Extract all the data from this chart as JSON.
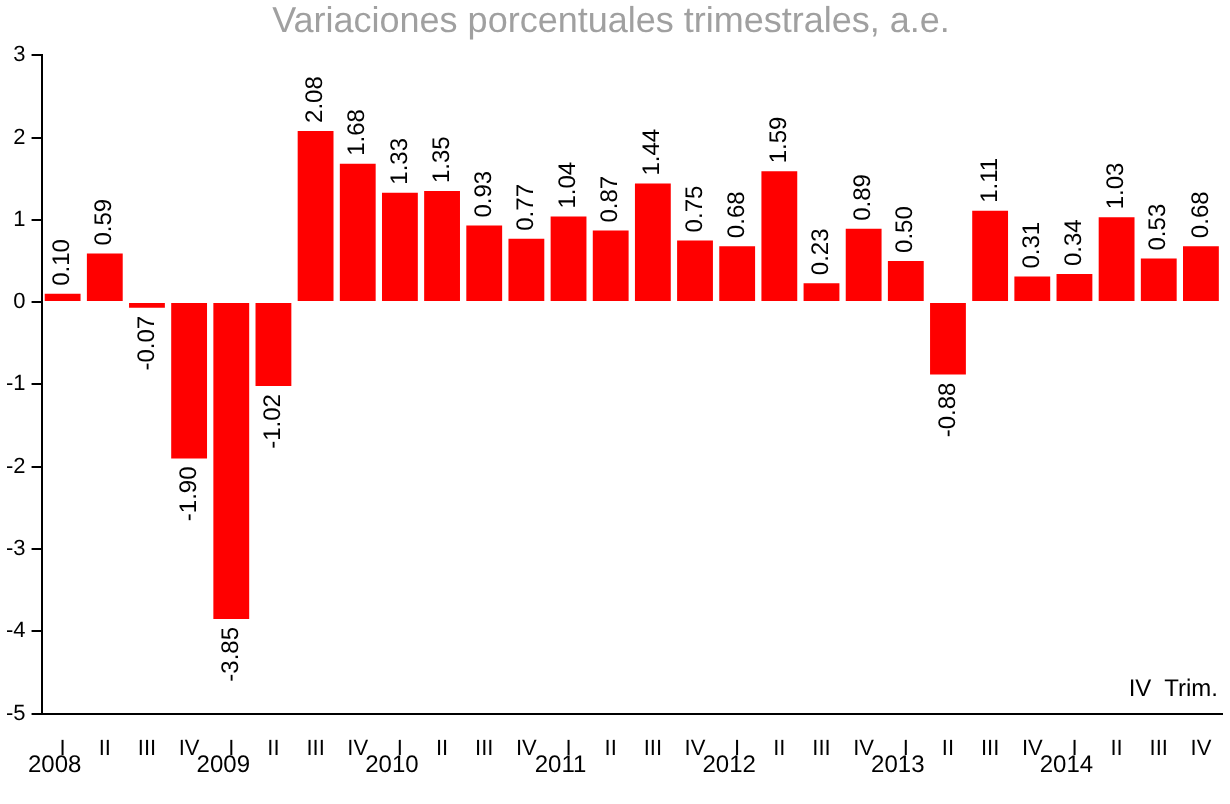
{
  "chart_data": {
    "type": "bar",
    "title": "Variaciones porcentuales trimestrales, a.e.",
    "categories": [
      "I",
      "II",
      "III",
      "IV",
      "I",
      "II",
      "III",
      "IV",
      "I",
      "II",
      "III",
      "IV",
      "I",
      "II",
      "III",
      "IV",
      "I",
      "II",
      "III",
      "IV",
      "I",
      "II",
      "III",
      "IV",
      "I",
      "II",
      "III",
      "IV"
    ],
    "values": [
      0.1,
      0.59,
      -0.07,
      -1.9,
      -3.85,
      -1.02,
      2.08,
      1.68,
      1.33,
      1.35,
      0.93,
      0.77,
      1.04,
      0.87,
      1.44,
      0.75,
      0.68,
      1.59,
      0.23,
      0.89,
      0.5,
      -0.88,
      1.11,
      0.31,
      0.34,
      1.03,
      0.53,
      0.68
    ],
    "value_labels": [
      "0.10",
      "0.59",
      "-0.07",
      "-1.90",
      "-3.85",
      "-1.02",
      "2.08",
      "1.68",
      "1.33",
      "1.35",
      "0.93",
      "0.77",
      "1.04",
      "0.87",
      "1.44",
      "0.75",
      "0.68",
      "1.59",
      "0.23",
      "0.89",
      "0.50",
      "-0.88",
      "1.11",
      "0.31",
      "0.34",
      "1.03",
      "0.53",
      "0.68"
    ],
    "color": "#ff0000",
    "ylim": [
      -5,
      3
    ],
    "yticks": [
      -5,
      -4,
      -3,
      -2,
      -1,
      0,
      1,
      2,
      3
    ],
    "grid": false,
    "legend": false,
    "annotations": [
      "IV  Trim.",
      "2008",
      "2009",
      "2010",
      "2011",
      "2012",
      "2013",
      "2014"
    ]
  }
}
